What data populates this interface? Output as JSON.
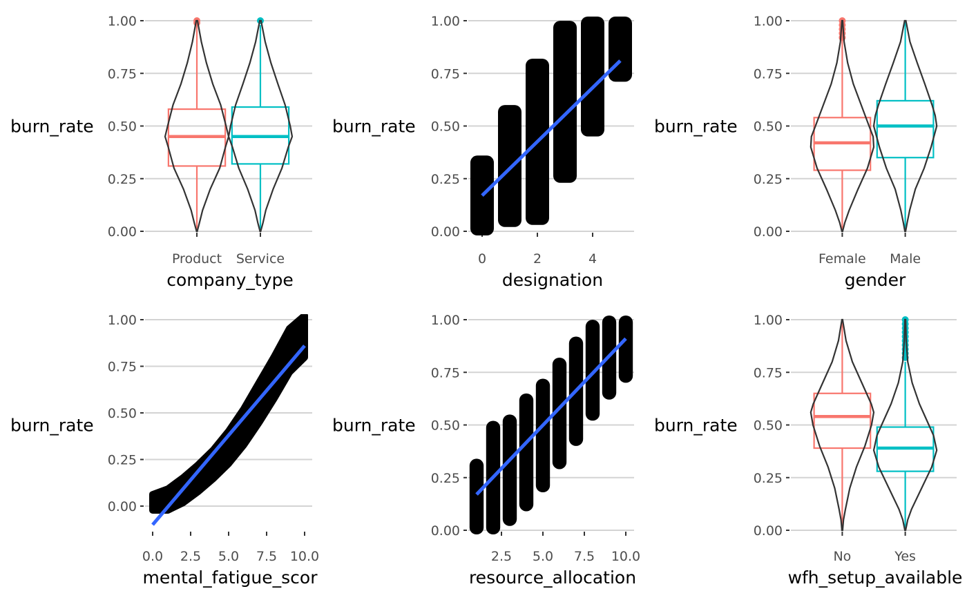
{
  "chart_data": [
    {
      "type": "violin-box",
      "xlabel": "company_type",
      "ylabel": "burn_rate",
      "ylim": [
        0,
        1
      ],
      "yticks": [
        "0.00",
        "0.25",
        "0.50",
        "0.75",
        "1.00"
      ],
      "categories": [
        "Product",
        "Service"
      ],
      "colors": [
        "#F8766D",
        "#00BFC4"
      ],
      "box": [
        {
          "category": "Product",
          "q1": 0.31,
          "median": 0.45,
          "q3": 0.58,
          "lower_whisker": 0.0,
          "upper_whisker": 0.98,
          "outliers": [
            0.99,
            1.0
          ]
        },
        {
          "category": "Service",
          "q1": 0.32,
          "median": 0.45,
          "q3": 0.59,
          "lower_whisker": 0.0,
          "upper_whisker": 0.98,
          "outliers": [
            1.0
          ]
        }
      ],
      "violin_shape": [
        {
          "category": "Product",
          "points": [
            [
              0.0,
              0.01
            ],
            [
              0.04,
              0.08
            ],
            [
              0.1,
              0.18
            ],
            [
              0.2,
              0.42
            ],
            [
              0.3,
              0.72
            ],
            [
              0.4,
              0.9
            ],
            [
              0.45,
              1.0
            ],
            [
              0.5,
              0.92
            ],
            [
              0.6,
              0.75
            ],
            [
              0.7,
              0.5
            ],
            [
              0.8,
              0.3
            ],
            [
              0.9,
              0.14
            ],
            [
              1.0,
              0.02
            ]
          ]
        },
        {
          "category": "Service",
          "points": [
            [
              0.0,
              0.01
            ],
            [
              0.04,
              0.08
            ],
            [
              0.1,
              0.17
            ],
            [
              0.2,
              0.4
            ],
            [
              0.3,
              0.68
            ],
            [
              0.4,
              0.88
            ],
            [
              0.45,
              1.0
            ],
            [
              0.5,
              0.94
            ],
            [
              0.6,
              0.78
            ],
            [
              0.7,
              0.55
            ],
            [
              0.8,
              0.33
            ],
            [
              0.9,
              0.15
            ],
            [
              1.0,
              0.02
            ]
          ]
        }
      ]
    },
    {
      "type": "scatter",
      "xlabel": "designation",
      "ylabel": "burn_rate",
      "xlim": [
        -0.5,
        5.5
      ],
      "ylim": [
        0,
        1
      ],
      "xticks": [
        0,
        2,
        4
      ],
      "yticks": [
        "0.00",
        "0.25",
        "0.50",
        "0.75",
        "1.00"
      ],
      "point_color": "#000000",
      "clusters": [
        {
          "x": 0,
          "y_range": [
            0.0,
            0.34
          ]
        },
        {
          "x": 1,
          "y_range": [
            0.04,
            0.58
          ]
        },
        {
          "x": 2,
          "y_range": [
            0.05,
            0.8
          ]
        },
        {
          "x": 3,
          "y_range": [
            0.25,
            0.98
          ]
        },
        {
          "x": 4,
          "y_range": [
            0.47,
            1.0
          ]
        },
        {
          "x": 5,
          "y_range": [
            0.73,
            1.0
          ]
        }
      ],
      "fit_line": {
        "color": "#3366FF",
        "x": [
          0,
          5
        ],
        "y": [
          0.17,
          0.81
        ]
      }
    },
    {
      "type": "violin-box",
      "xlabel": "gender",
      "ylabel": "burn_rate",
      "ylim": [
        0,
        1
      ],
      "yticks": [
        "0.00",
        "0.25",
        "0.50",
        "0.75",
        "1.00"
      ],
      "categories": [
        "Female",
        "Male"
      ],
      "colors": [
        "#F8766D",
        "#00BFC4"
      ],
      "box": [
        {
          "category": "Female",
          "q1": 0.29,
          "median": 0.42,
          "q3": 0.54,
          "lower_whisker": 0.0,
          "upper_whisker": 0.91,
          "outliers": [
            0.92,
            0.94,
            0.96,
            0.98,
            1.0
          ]
        },
        {
          "category": "Male",
          "q1": 0.35,
          "median": 0.5,
          "q3": 0.62,
          "lower_whisker": 0.0,
          "upper_whisker": 1.0,
          "outliers": []
        }
      ],
      "violin_shape": [
        {
          "category": "Female",
          "points": [
            [
              0.0,
              0.01
            ],
            [
              0.04,
              0.08
            ],
            [
              0.1,
              0.22
            ],
            [
              0.2,
              0.5
            ],
            [
              0.3,
              0.8
            ],
            [
              0.4,
              1.0
            ],
            [
              0.45,
              0.98
            ],
            [
              0.5,
              0.85
            ],
            [
              0.6,
              0.6
            ],
            [
              0.7,
              0.35
            ],
            [
              0.8,
              0.17
            ],
            [
              0.9,
              0.06
            ],
            [
              1.0,
              0.01
            ]
          ]
        },
        {
          "category": "Male",
          "points": [
            [
              0.0,
              0.01
            ],
            [
              0.04,
              0.06
            ],
            [
              0.1,
              0.14
            ],
            [
              0.2,
              0.32
            ],
            [
              0.3,
              0.6
            ],
            [
              0.4,
              0.82
            ],
            [
              0.5,
              1.0
            ],
            [
              0.55,
              0.95
            ],
            [
              0.6,
              0.85
            ],
            [
              0.7,
              0.62
            ],
            [
              0.8,
              0.38
            ],
            [
              0.9,
              0.15
            ],
            [
              1.0,
              0.02
            ]
          ]
        }
      ]
    },
    {
      "type": "scatter",
      "xlabel": "mental_fatigue_scor",
      "ylabel": "burn_rate",
      "xlim": [
        -0.5,
        10.5
      ],
      "ylim": [
        -0.1,
        1
      ],
      "xticks": [
        "0.0",
        "2.5",
        "5.0",
        "7.5",
        "10.0"
      ],
      "yticks": [
        "0.00",
        "0.25",
        "0.50",
        "0.75",
        "1.00"
      ],
      "point_color": "#000000",
      "band": {
        "x": [
          0,
          1,
          2,
          3,
          4,
          5,
          6,
          7,
          8,
          9,
          10
        ],
        "upper": [
          0.04,
          0.07,
          0.13,
          0.2,
          0.28,
          0.38,
          0.5,
          0.64,
          0.78,
          0.93,
          1.0
        ],
        "lower": [
          0.0,
          0.0,
          0.04,
          0.1,
          0.17,
          0.25,
          0.35,
          0.47,
          0.6,
          0.74,
          0.82
        ]
      },
      "fit_line": {
        "color": "#3366FF",
        "x": [
          0,
          10
        ],
        "y": [
          -0.1,
          0.86
        ]
      }
    },
    {
      "type": "scatter",
      "xlabel": "resource_allocation",
      "ylabel": "burn_rate",
      "xlim": [
        0.5,
        10.5
      ],
      "ylim": [
        0,
        1
      ],
      "xticks": [
        "2.5",
        "5.0",
        "7.5",
        "10.0"
      ],
      "yticks": [
        "0.00",
        "0.25",
        "0.50",
        "0.75",
        "1.00"
      ],
      "point_color": "#000000",
      "clusters": [
        {
          "x": 1,
          "y_range": [
            0.0,
            0.32
          ]
        },
        {
          "x": 2,
          "y_range": [
            0.0,
            0.5
          ]
        },
        {
          "x": 3,
          "y_range": [
            0.04,
            0.53
          ]
        },
        {
          "x": 4,
          "y_range": [
            0.11,
            0.63
          ]
        },
        {
          "x": 5,
          "y_range": [
            0.2,
            0.7
          ]
        },
        {
          "x": 6,
          "y_range": [
            0.31,
            0.8
          ]
        },
        {
          "x": 7,
          "y_range": [
            0.42,
            0.9
          ]
        },
        {
          "x": 8,
          "y_range": [
            0.54,
            0.98
          ]
        },
        {
          "x": 9,
          "y_range": [
            0.64,
            1.0
          ]
        },
        {
          "x": 10,
          "y_range": [
            0.72,
            1.0
          ]
        }
      ],
      "fit_line": {
        "color": "#3366FF",
        "x": [
          1,
          10
        ],
        "y": [
          0.17,
          0.91
        ]
      }
    },
    {
      "type": "violin-box",
      "xlabel": "wfh_setup_available",
      "ylabel": "burn_rate",
      "ylim": [
        0,
        1
      ],
      "yticks": [
        "0.00",
        "0.25",
        "0.50",
        "0.75",
        "1.00"
      ],
      "categories": [
        "No",
        "Yes"
      ],
      "colors": [
        "#F8766D",
        "#00BFC4"
      ],
      "box": [
        {
          "category": "No",
          "q1": 0.39,
          "median": 0.54,
          "q3": 0.65,
          "lower_whisker": 0.0,
          "upper_whisker": 1.0,
          "outliers": []
        },
        {
          "category": "Yes",
          "q1": 0.28,
          "median": 0.39,
          "q3": 0.49,
          "lower_whisker": 0.0,
          "upper_whisker": 0.8,
          "outliers": [
            0.82,
            0.84,
            0.86,
            0.88,
            0.9,
            0.92,
            0.94,
            0.96,
            0.98,
            1.0
          ]
        }
      ],
      "violin_shape": [
        {
          "category": "No",
          "points": [
            [
              0.0,
              0.01
            ],
            [
              0.05,
              0.04
            ],
            [
              0.1,
              0.1
            ],
            [
              0.2,
              0.24
            ],
            [
              0.3,
              0.45
            ],
            [
              0.4,
              0.72
            ],
            [
              0.5,
              0.93
            ],
            [
              0.56,
              1.0
            ],
            [
              0.6,
              0.92
            ],
            [
              0.7,
              0.62
            ],
            [
              0.8,
              0.32
            ],
            [
              0.9,
              0.12
            ],
            [
              1.0,
              0.01
            ]
          ]
        },
        {
          "category": "Yes",
          "points": [
            [
              0.0,
              0.01
            ],
            [
              0.05,
              0.08
            ],
            [
              0.1,
              0.2
            ],
            [
              0.2,
              0.52
            ],
            [
              0.3,
              0.84
            ],
            [
              0.38,
              1.0
            ],
            [
              0.45,
              0.9
            ],
            [
              0.5,
              0.75
            ],
            [
              0.6,
              0.45
            ],
            [
              0.7,
              0.22
            ],
            [
              0.8,
              0.08
            ],
            [
              0.9,
              0.03
            ],
            [
              1.0,
              0.01
            ]
          ]
        }
      ]
    }
  ]
}
